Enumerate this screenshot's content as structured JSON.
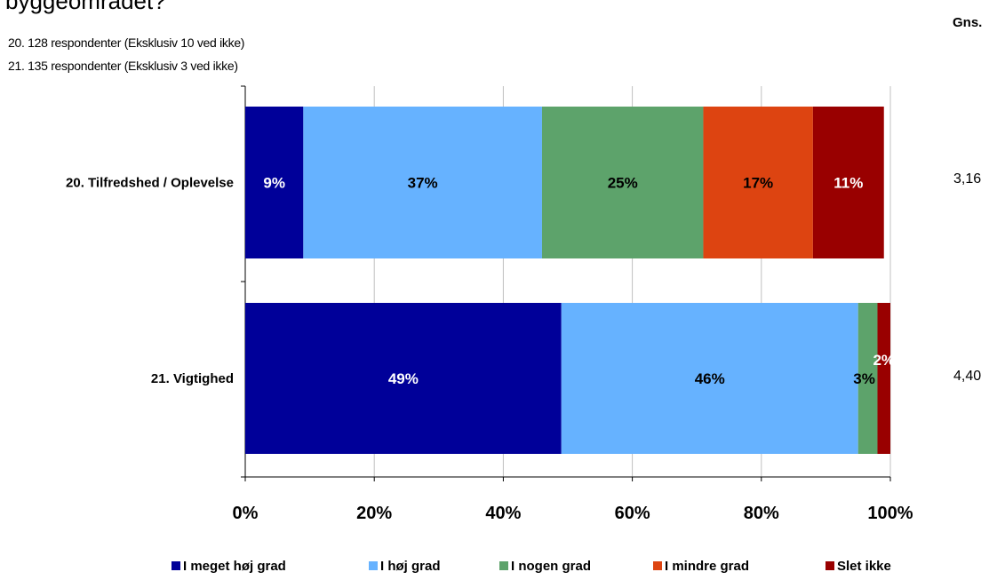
{
  "title": "byggeområdet?",
  "respondent_notes": [
    "20. 128 respondenter (Eksklusiv 10 ved ikke)",
    "21. 135 respondenter (Eksklusiv 3 ved ikke)"
  ],
  "gns": {
    "header": "Gns.",
    "values": [
      "3,16",
      "4,40"
    ]
  },
  "chart_data": {
    "type": "bar",
    "orientation": "horizontal",
    "stacked": "percent",
    "categories": [
      "20. Tilfredshed / Oplevelse",
      "21. Vigtighed"
    ],
    "series": [
      {
        "name": "I meget høj grad",
        "color": "#000099",
        "values": [
          9,
          49
        ],
        "labels": [
          "9%",
          "49%"
        ]
      },
      {
        "name": "I høj grad",
        "color": "#66B2FF",
        "values": [
          37,
          46
        ],
        "labels": [
          "37%",
          "46%"
        ]
      },
      {
        "name": "I nogen grad",
        "color": "#5DA36B",
        "values": [
          25,
          3
        ],
        "labels": [
          "25%",
          "3%"
        ]
      },
      {
        "name": "I mindre grad",
        "color": "#DD4411",
        "values": [
          17,
          0
        ],
        "labels": [
          "17%",
          ""
        ]
      },
      {
        "name": "Slet ikke",
        "color": "#990000",
        "values": [
          11,
          2
        ],
        "labels": [
          "11%",
          "2%"
        ]
      }
    ],
    "x_ticks": [
      "0%",
      "20%",
      "40%",
      "60%",
      "80%",
      "100%"
    ],
    "xlim": [
      0,
      100
    ],
    "grid": true,
    "legend_position": "bottom"
  }
}
